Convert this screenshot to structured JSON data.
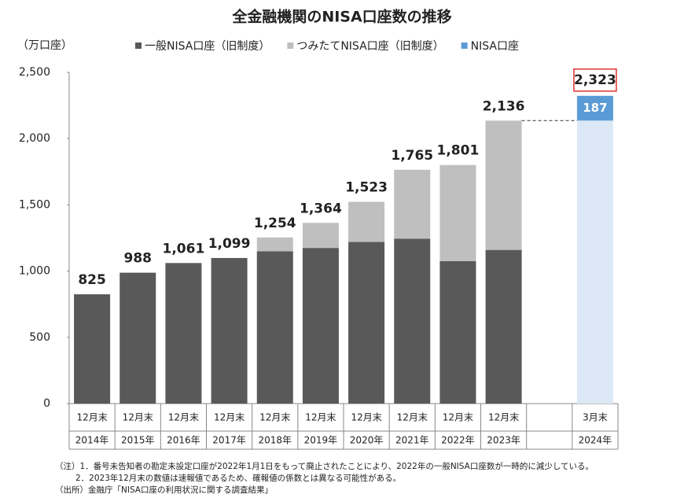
{
  "chart_data": {
    "type": "stacked-bar",
    "title": "全金融機関のNISA口座数の推移",
    "y_unit": "（万口座）",
    "categories": [
      "2014年",
      "2015年",
      "2016年",
      "2017年",
      "2018年",
      "2019年",
      "2020年",
      "2021年",
      "2022年",
      "2023年",
      null,
      "2024年"
    ],
    "category_months": [
      "12月末",
      "12月末",
      "12月末",
      "12月末",
      "12月末",
      "12月末",
      "12月末",
      "12月末",
      "12月末",
      "12月末",
      null,
      "3月末"
    ],
    "series": [
      {
        "name": "一般NISA口座（旧制度）",
        "color": "#595959",
        "values": [
          825,
          988,
          1061,
          1099,
          1150,
          1175,
          1220,
          1245,
          1075,
          1160,
          null,
          null
        ]
      },
      {
        "name": "つみたてNISA口座（旧制度）",
        "color": "#bfbfbf",
        "values": [
          null,
          null,
          null,
          null,
          104,
          189,
          303,
          520,
          726,
          976,
          null,
          null
        ]
      },
      {
        "color": "#dce8f5",
        "values": [
          null,
          null,
          null,
          null,
          null,
          null,
          null,
          null,
          null,
          null,
          null,
          2136
        ]
      },
      {
        "name": "NISA口座",
        "color": "#5b9bd5",
        "values": [
          null,
          null,
          null,
          null,
          null,
          null,
          null,
          null,
          null,
          null,
          null,
          187
        ]
      }
    ],
    "totals": [
      825,
      988,
      1061,
      1099,
      1254,
      1364,
      1523,
      1765,
      1801,
      2136,
      null,
      2323
    ],
    "total_labels": [
      "825",
      "988",
      "1,061",
      "1,099",
      "1,254",
      "1,364",
      "1,523",
      "1,765",
      "1,801",
      "2,136",
      null,
      "2,323"
    ],
    "ylim": [
      0,
      2500
    ],
    "yticks": [
      0,
      500,
      {
        "value": 1000,
        "label": "1,000"
      },
      {
        "value": 1500,
        "label": "1,500"
      },
      {
        "value": 2000,
        "label": "2,000"
      },
      {
        "value": 2500,
        "label": "2,500"
      }
    ],
    "notes": [
      "（注）1．番号未告知者の勘定未設定口座が2022年1月1日をもって廃止されたことにより、2022年の一般NISA口座数が一時的に減少している。",
      "2．2023年12月末の数値は速報値であるため、確報値の係数とは異なる可能性がある。",
      "（出所）金融庁「NISA口座の利用状況に関する調査結果」"
    ]
  }
}
